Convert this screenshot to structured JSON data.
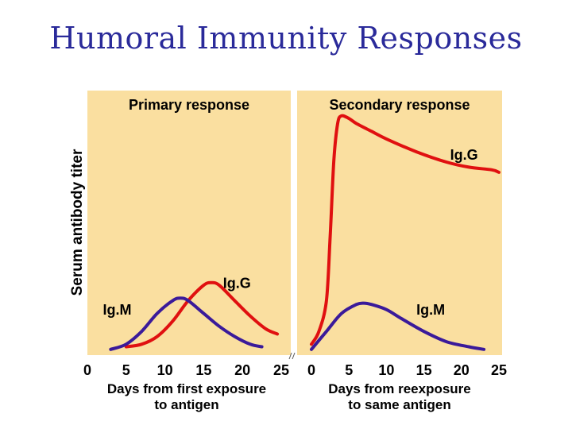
{
  "slide": {
    "title": "Humoral Immunity Responses"
  },
  "chart_data": [
    {
      "type": "line",
      "title": "Primary response",
      "ylabel": "Serum antibody titer",
      "xlabel": "Days from first exposure to antigen",
      "xlabel_lines": [
        "Days from first exposure",
        "to antigen"
      ],
      "xticks": [
        0,
        5,
        10,
        15,
        20,
        25
      ],
      "xlim": [
        0,
        25
      ],
      "ylim": [
        0,
        100
      ],
      "background": "#fadfa0",
      "series": [
        {
          "name": "Ig.G",
          "color": "#e01010",
          "label_pos": [
            17.5,
            25
          ],
          "x": [
            5,
            7,
            9,
            11,
            13,
            15,
            16,
            17,
            19,
            21,
            23,
            24.5
          ],
          "y": [
            2,
            3,
            6,
            12,
            20,
            26,
            27,
            26,
            20,
            14,
            9,
            7
          ]
        },
        {
          "name": "Ig.M",
          "color": "#3a1a9a",
          "label_pos": [
            2,
            14.5
          ],
          "x": [
            3,
            5,
            7,
            9,
            11,
            12,
            13,
            15,
            17,
            19,
            21,
            22.5
          ],
          "y": [
            1,
            3,
            8,
            15,
            20,
            21,
            20,
            15,
            10,
            6,
            3,
            2
          ]
        }
      ]
    },
    {
      "type": "line",
      "title": "Secondary response",
      "xlabel": "Days from reexposure to same antigen",
      "xlabel_lines": [
        "Days from reexposure",
        "to same antigen"
      ],
      "xticks": [
        0,
        5,
        10,
        15,
        20,
        25
      ],
      "xlim": [
        0,
        25
      ],
      "ylim": [
        0,
        100
      ],
      "background": "#fadfa0",
      "series": [
        {
          "name": "Ig.G",
          "color": "#e01010",
          "label_pos": [
            18.5,
            75
          ],
          "x": [
            0,
            1,
            2,
            2.5,
            3,
            3.5,
            4,
            5,
            6,
            8,
            10,
            14,
            18,
            21,
            24,
            25
          ],
          "y": [
            3,
            8,
            20,
            45,
            75,
            89,
            92,
            91,
            89,
            86,
            83,
            78,
            74,
            72,
            71,
            70
          ]
        },
        {
          "name": "Ig.M",
          "color": "#3a1a9a",
          "label_pos": [
            14,
            14.5
          ],
          "x": [
            0,
            2,
            4,
            6,
            7,
            8,
            10,
            12,
            15,
            18,
            21,
            23
          ],
          "y": [
            1,
            8,
            15,
            18.5,
            19,
            18.5,
            16.5,
            13,
            8,
            4,
            2,
            1
          ]
        }
      ]
    }
  ]
}
